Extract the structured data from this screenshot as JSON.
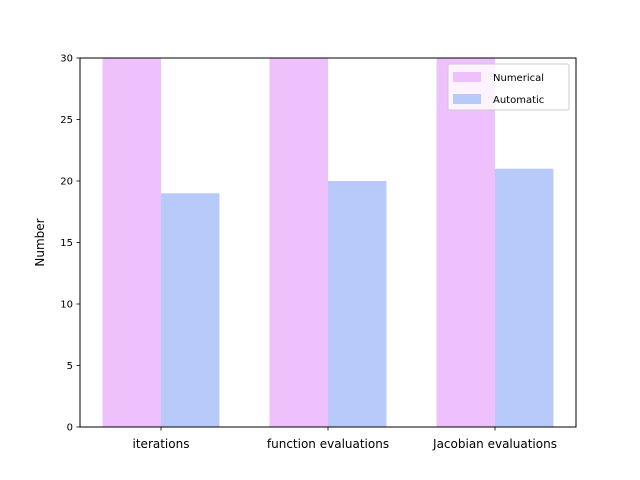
{
  "chart_data": {
    "type": "bar",
    "categories": [
      "iterations",
      "function evaluations",
      "Jacobian evaluations"
    ],
    "series": [
      {
        "name": "Numerical",
        "values": [
          30,
          30,
          30
        ],
        "color": "#eec1fd"
      },
      {
        "name": "Automatic",
        "values": [
          19,
          20,
          21
        ],
        "color": "#b7cafa"
      }
    ],
    "title": "",
    "xlabel": "",
    "ylabel": "Number",
    "ylim": [
      0,
      30
    ],
    "yticks": [
      0,
      5,
      10,
      15,
      20,
      25,
      30
    ],
    "grid": false,
    "legend_position": "top-right"
  }
}
